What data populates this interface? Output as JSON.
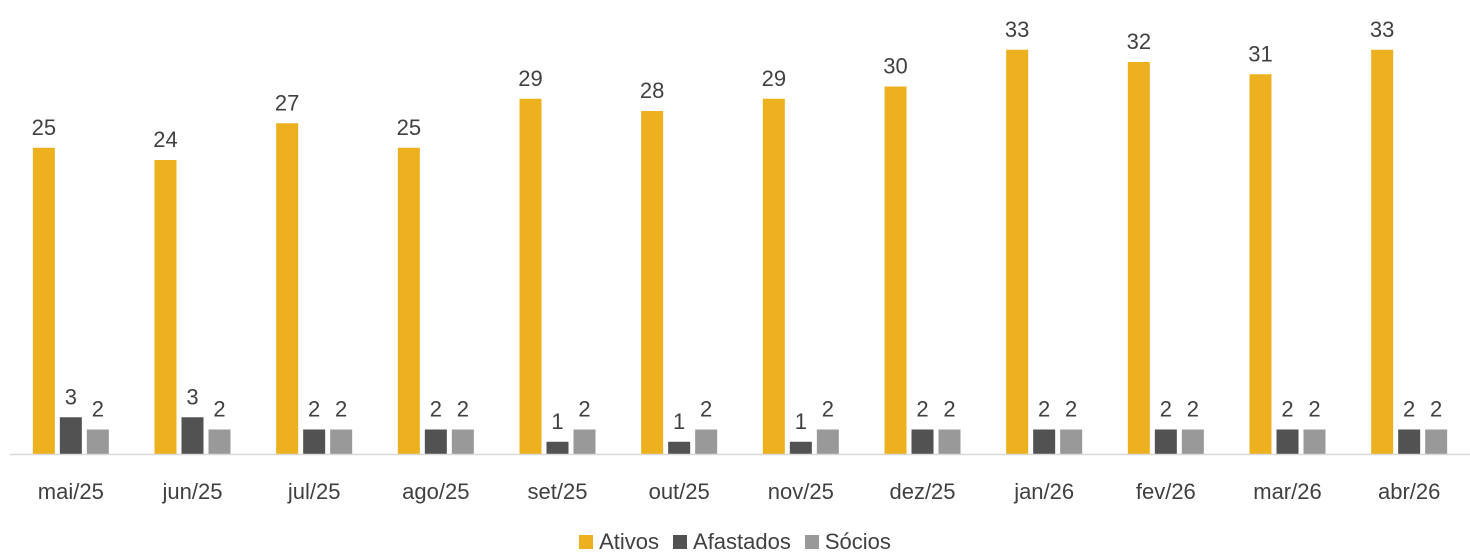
{
  "chart_data": {
    "type": "bar",
    "title": "",
    "xlabel": "",
    "ylabel": "",
    "ylim": [
      0,
      35
    ],
    "grid": false,
    "legend_position": "bottom",
    "categories": [
      "mai/25",
      "jun/25",
      "jul/25",
      "ago/25",
      "set/25",
      "out/25",
      "nov/25",
      "dez/25",
      "jan/26",
      "fev/26",
      "mar/26",
      "abr/26"
    ],
    "series": [
      {
        "name": "Ativos",
        "color": "#EDB11F",
        "values": [
          25,
          24,
          27,
          25,
          29,
          28,
          29,
          30,
          33,
          32,
          31,
          33
        ]
      },
      {
        "name": "Afastados",
        "color": "#525252",
        "values": [
          3,
          3,
          2,
          2,
          1,
          1,
          1,
          2,
          2,
          2,
          2,
          2
        ]
      },
      {
        "name": "Sócios",
        "color": "#999999",
        "values": [
          2,
          2,
          2,
          2,
          2,
          2,
          2,
          2,
          2,
          2,
          2,
          2
        ]
      }
    ],
    "data_labels": true
  },
  "colors": {
    "axis": "#D9D9D9",
    "text": "#404040"
  }
}
